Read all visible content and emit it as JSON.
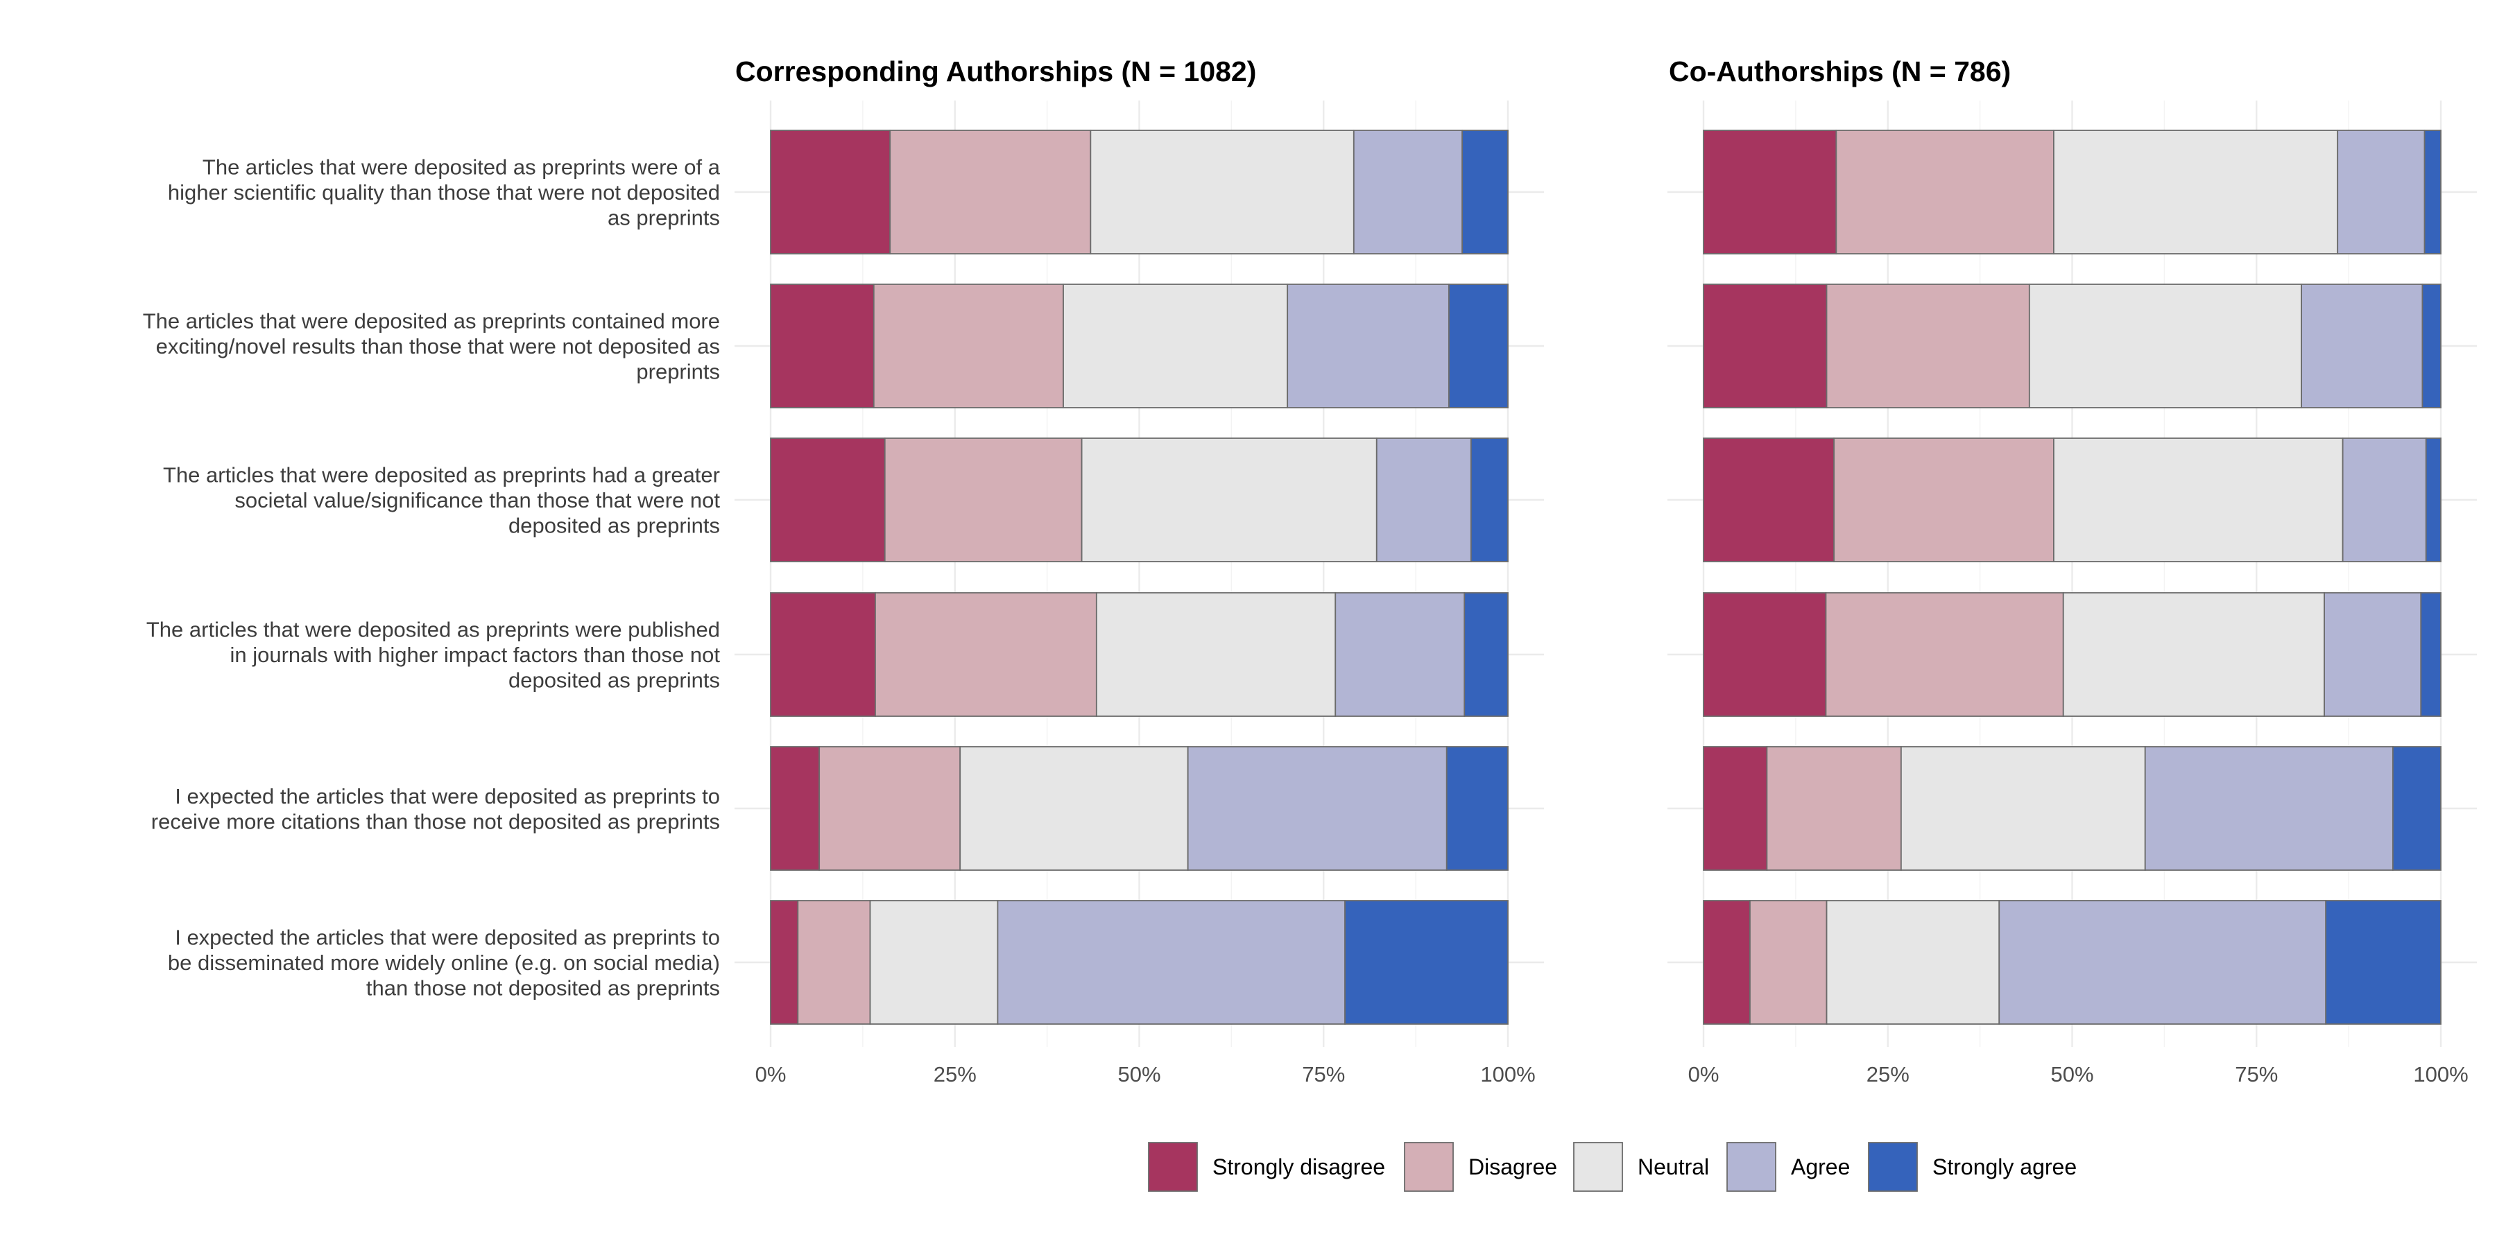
{
  "chart_data": {
    "type": "bar",
    "orientation": "horizontal",
    "stacked": true,
    "percent_scale": true,
    "xlim": [
      0,
      100
    ],
    "x_ticks": [
      "0%",
      "25%",
      "50%",
      "75%",
      "100%"
    ],
    "grid": true,
    "legend_position": "bottom",
    "levels": [
      "Strongly disagree",
      "Disagree",
      "Neutral",
      "Agree",
      "Strongly agree"
    ],
    "colors": [
      "#a6355f",
      "#d4afb6",
      "#e6e6e6",
      "#b2b5d4",
      "#3563bb"
    ],
    "categories": [
      "The articles that were deposited as preprints were of a higher scientific quality than those that were not deposited as preprints",
      "The articles that were deposited as preprints contained more exciting/novel results than those that were not deposited as preprints",
      "The articles that were deposited as preprints had a greater societal value/significance than those that were not deposited as preprints",
      "The articles that were deposited as preprints were published in journals with higher impact factors than those not deposited as preprints",
      "I expected the articles that were deposited as preprints to receive more citations than those not deposited as preprints",
      "I expected the articles that were deposited as preprints to be disseminated more widely online (e.g. on social media) than those not deposited as preprints"
    ],
    "category_label_lines": [
      [
        "The articles that were deposited as preprints were of a",
        "higher scientific quality than those that were not deposited",
        "as preprints"
      ],
      [
        "The articles that were deposited as preprints contained more",
        "exciting/novel results than those that were not deposited as",
        "preprints"
      ],
      [
        "The articles that were deposited as preprints had a greater",
        "societal value/significance than those that were not",
        "deposited as preprints"
      ],
      [
        "The articles that were deposited as preprints were published",
        "in journals with higher impact factors than those not",
        "deposited as preprints"
      ],
      [
        "I expected the articles that were deposited as preprints to",
        "receive more citations than those not deposited as preprints"
      ],
      [
        "I expected the articles that were deposited as preprints to",
        "be disseminated more widely online (e.g. on social media)",
        "than those not deposited as preprints"
      ]
    ],
    "panels": [
      {
        "title": "Corresponding Authorships (N = 1082)",
        "values": [
          [
            16.2,
            27.2,
            35.7,
            14.7,
            6.2
          ],
          [
            14.0,
            25.7,
            30.4,
            21.9,
            8.0
          ],
          [
            15.5,
            26.7,
            40.0,
            12.8,
            5.0
          ],
          [
            14.2,
            30.0,
            32.4,
            17.5,
            5.9
          ],
          [
            6.6,
            19.1,
            30.9,
            35.1,
            8.3
          ],
          [
            3.7,
            9.8,
            17.3,
            47.1,
            22.1
          ]
        ]
      },
      {
        "title": "Co-Authorships (N = 786)",
        "values": [
          [
            18.0,
            29.5,
            38.5,
            11.8,
            2.2
          ],
          [
            16.7,
            27.5,
            36.9,
            16.4,
            2.5
          ],
          [
            17.7,
            29.8,
            39.2,
            11.3,
            2.0
          ],
          [
            16.6,
            32.2,
            35.4,
            13.1,
            2.7
          ],
          [
            8.6,
            18.2,
            33.1,
            33.6,
            6.5
          ],
          [
            6.3,
            10.4,
            23.4,
            44.3,
            15.6
          ]
        ]
      }
    ]
  }
}
